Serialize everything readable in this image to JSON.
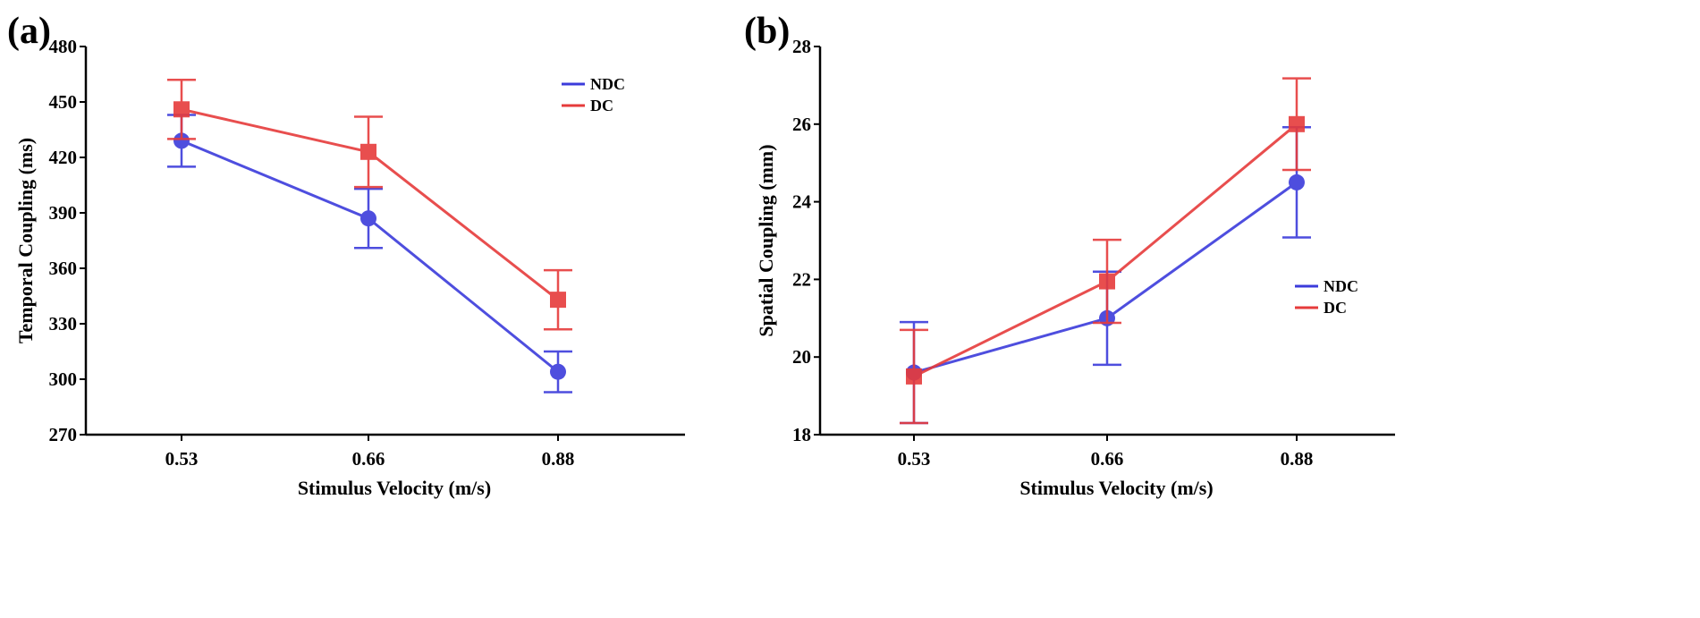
{
  "figure": {
    "description_labels": [
      "(a)",
      "(b)"
    ]
  },
  "chart_data": [
    {
      "panel": "(a)",
      "type": "line",
      "title": "",
      "xlabel": "Stimulus Velocity (m/s)",
      "ylabel": "Temporal Coupling (ms)",
      "categories": [
        "0.53",
        "0.66",
        "0.88"
      ],
      "ylim": [
        270,
        480
      ],
      "yticks": [
        270,
        300,
        330,
        360,
        390,
        420,
        450,
        480
      ],
      "legend_position": "top-right",
      "series": [
        {
          "name": "NDC",
          "color": "#3b3bdb",
          "marker": "circle",
          "values": [
            429,
            387,
            304
          ],
          "err": [
            14,
            16,
            11
          ]
        },
        {
          "name": "DC",
          "color": "#e63b3b",
          "marker": "square",
          "values": [
            446,
            423,
            343
          ],
          "err": [
            16,
            19,
            16
          ]
        }
      ]
    },
    {
      "panel": "(b)",
      "type": "line",
      "title": "",
      "xlabel": "Stimulus Velocity (m/s)",
      "ylabel": "Spatial Coupling (mm)",
      "categories": [
        "0.53",
        "0.66",
        "0.88"
      ],
      "ylim": [
        18,
        28
      ],
      "yticks": [
        18,
        20,
        22,
        24,
        26,
        28
      ],
      "legend_position": "right",
      "series": [
        {
          "name": "NDC",
          "color": "#3b3bdb",
          "marker": "circle",
          "values": [
            19.6,
            21.0,
            24.5
          ],
          "err": [
            1.3,
            1.2,
            1.42
          ]
        },
        {
          "name": "DC",
          "color": "#e63b3b",
          "marker": "square",
          "values": [
            19.5,
            21.95,
            26.0
          ],
          "err": [
            1.2,
            1.07,
            1.18
          ]
        }
      ]
    }
  ]
}
